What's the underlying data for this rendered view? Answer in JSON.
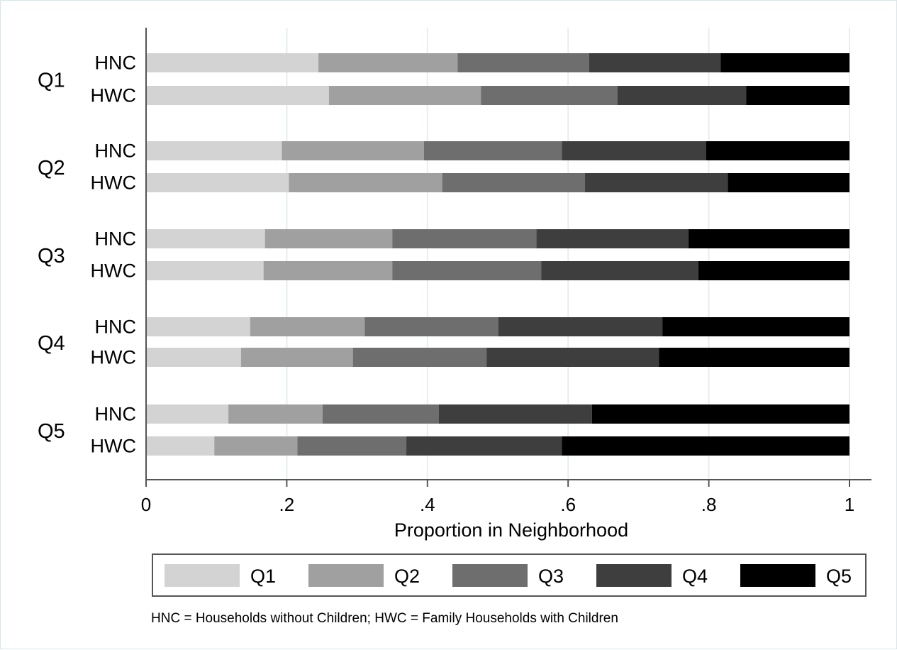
{
  "chart_data": {
    "type": "bar",
    "orientation": "horizontal",
    "stacked": true,
    "groups": [
      "Q1",
      "Q2",
      "Q3",
      "Q4",
      "Q5"
    ],
    "subgroups": [
      "HNC",
      "HWC"
    ],
    "xlabel": "Proportion in Neighborhood",
    "xlim": [
      0,
      1
    ],
    "xticks": [
      {
        "value": 0,
        "label": "0"
      },
      {
        "value": 0.2,
        "label": ".2"
      },
      {
        "value": 0.4,
        "label": ".4"
      },
      {
        "value": 0.6,
        "label": ".6"
      },
      {
        "value": 0.8,
        "label": ".8"
      },
      {
        "value": 1,
        "label": "1"
      }
    ],
    "grid": "vertical",
    "legend_position": "bottom",
    "series": [
      {
        "name": "Q1",
        "color": "#d3d3d3"
      },
      {
        "name": "Q2",
        "color": "#a0a0a0"
      },
      {
        "name": "Q3",
        "color": "#6e6e6e"
      },
      {
        "name": "Q4",
        "color": "#3e3e3e"
      },
      {
        "name": "Q5",
        "color": "#000000"
      }
    ],
    "bars": [
      {
        "group": "Q1",
        "label": "HNC",
        "values": [
          0.245,
          0.198,
          0.187,
          0.187,
          0.183
        ]
      },
      {
        "group": "Q1",
        "label": "HWC",
        "values": [
          0.26,
          0.216,
          0.194,
          0.183,
          0.147
        ]
      },
      {
        "group": "Q2",
        "label": "HNC",
        "values": [
          0.193,
          0.202,
          0.196,
          0.205,
          0.204
        ]
      },
      {
        "group": "Q2",
        "label": "HWC",
        "values": [
          0.203,
          0.218,
          0.203,
          0.203,
          0.173
        ]
      },
      {
        "group": "Q3",
        "label": "HNC",
        "values": [
          0.169,
          0.181,
          0.205,
          0.216,
          0.229
        ]
      },
      {
        "group": "Q3",
        "label": "HWC",
        "values": [
          0.167,
          0.183,
          0.212,
          0.223,
          0.215
        ]
      },
      {
        "group": "Q4",
        "label": "HNC",
        "values": [
          0.148,
          0.163,
          0.19,
          0.233,
          0.266
        ]
      },
      {
        "group": "Q4",
        "label": "HWC",
        "values": [
          0.135,
          0.159,
          0.19,
          0.245,
          0.271
        ]
      },
      {
        "group": "Q5",
        "label": "HNC",
        "values": [
          0.117,
          0.134,
          0.165,
          0.218,
          0.366
        ]
      },
      {
        "group": "Q5",
        "label": "HWC",
        "values": [
          0.097,
          0.118,
          0.155,
          0.221,
          0.409
        ]
      }
    ],
    "note": "HNC = Households without Children; HWC = Family Households with Children"
  }
}
